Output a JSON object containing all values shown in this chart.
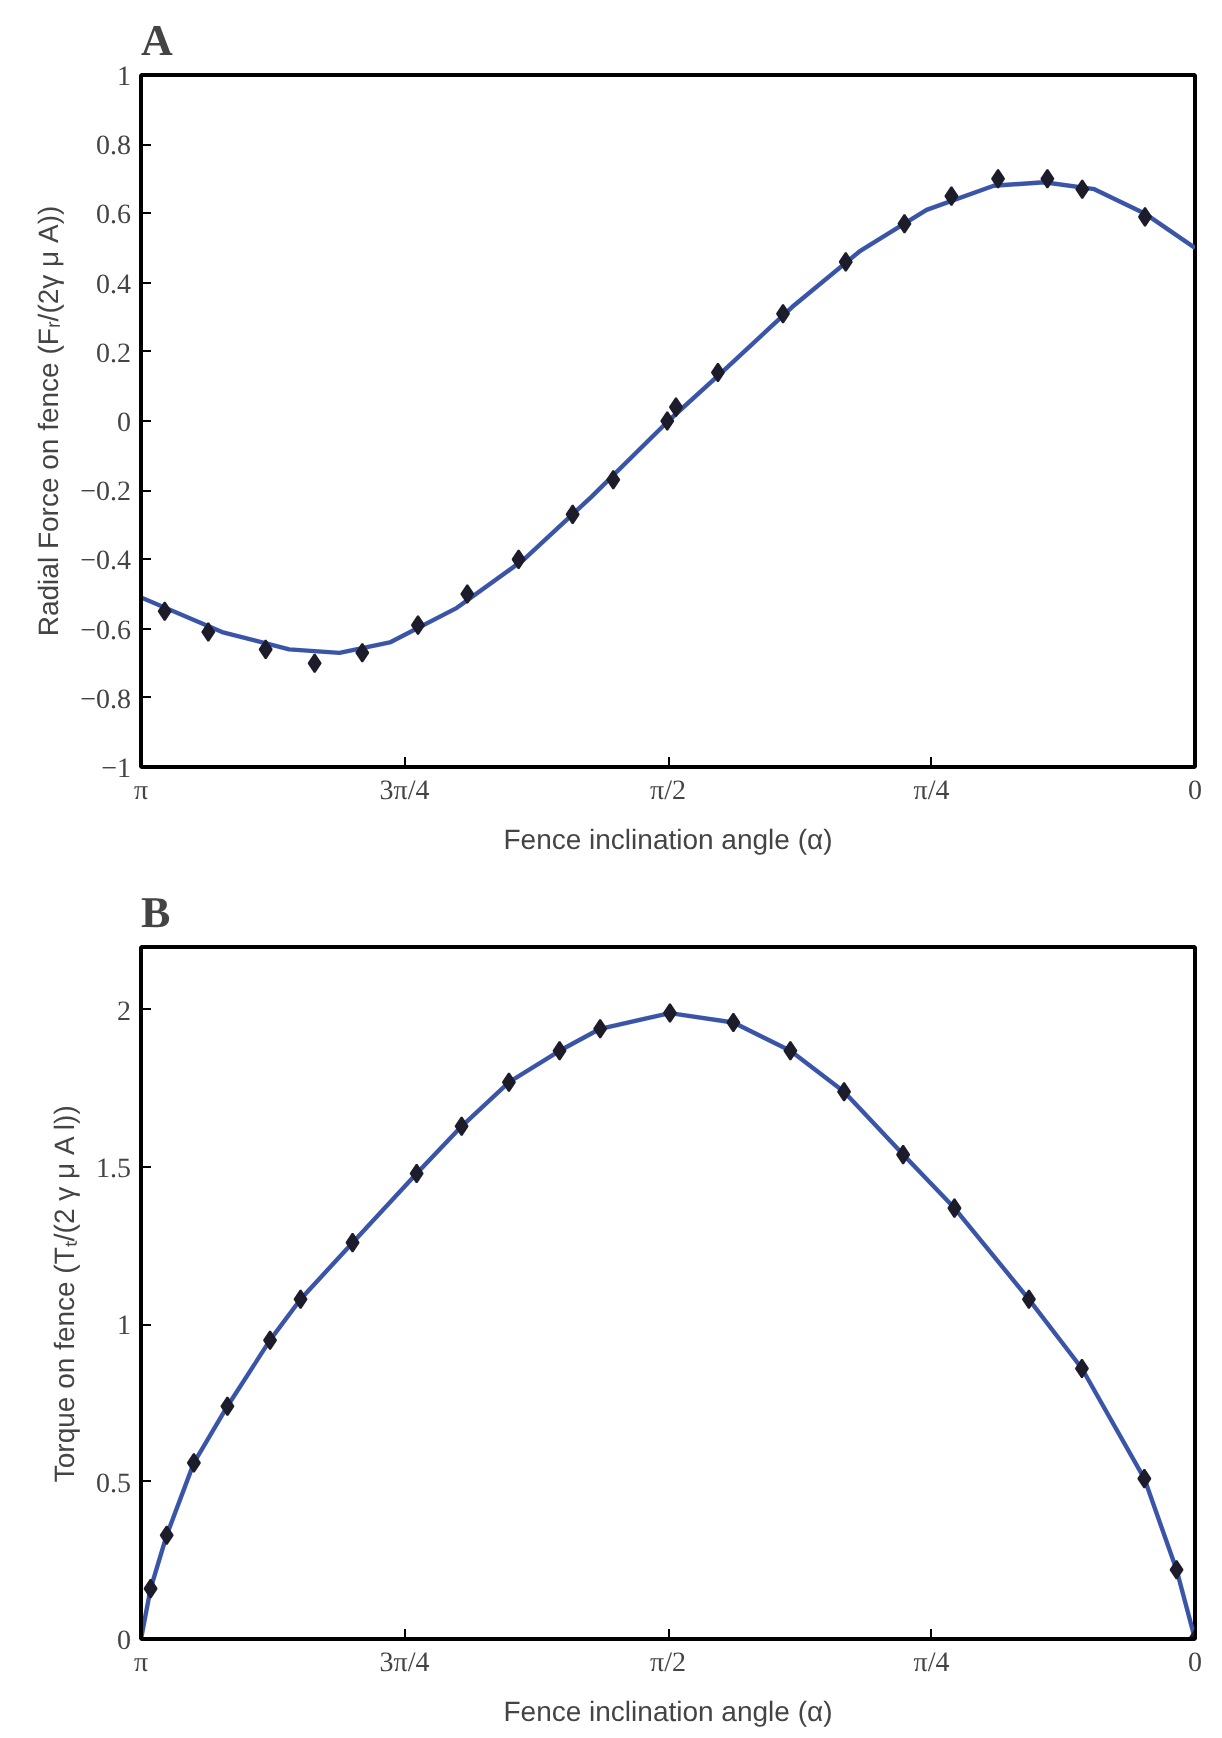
{
  "chart_data": [
    {
      "type": "line",
      "title": "A",
      "xlabel": "Fence inclination angle (α)",
      "ylabel": "Radial Force on fence (Fᵣ/(2γ μ A))",
      "xlim": [
        3.1416,
        0
      ],
      "xticks": [
        {
          "value": 3.1416,
          "label": "π"
        },
        {
          "value": 2.3562,
          "label": "3π/4"
        },
        {
          "value": 1.5708,
          "label": "π/2"
        },
        {
          "value": 0.7854,
          "label": "π/4"
        },
        0
      ],
      "ylim": [
        -1,
        1
      ],
      "yticks": [
        {
          "value": -1,
          "label": "−1"
        },
        {
          "value": -0.8,
          "label": "−0.8"
        },
        {
          "value": -0.6,
          "label": "−0.6"
        },
        {
          "value": -0.4,
          "label": "−0.4"
        },
        {
          "value": -0.2,
          "label": "−0.2"
        },
        0,
        0.2,
        0.4,
        0.6,
        0.8,
        1
      ],
      "grid": false,
      "series": [
        {
          "color": "#3a55a8",
          "marker": "none",
          "x": [
            3.1416,
            2.9,
            2.7,
            2.55,
            2.4,
            2.2,
            2.0,
            1.8,
            1.57,
            1.4,
            1.2,
            1.0,
            0.8,
            0.6,
            0.45,
            0.3,
            0.15,
            0
          ],
          "values": [
            -0.51,
            -0.61,
            -0.66,
            -0.67,
            -0.64,
            -0.54,
            -0.4,
            -0.22,
            0.0,
            0.15,
            0.33,
            0.49,
            0.61,
            0.68,
            0.69,
            0.67,
            0.6,
            0.5
          ]
        },
        {
          "type": "scatter",
          "marker": "diamond",
          "color": "#1c1c2a",
          "x": [
            3.071,
            2.941,
            2.77,
            2.624,
            2.482,
            2.316,
            2.169,
            2.016,
            1.855,
            1.734,
            1.573,
            1.547,
            1.422,
            1.228,
            1.041,
            0.866,
            0.726,
            0.587,
            0.44,
            0.336,
            0.149
          ],
          "values": [
            -0.55,
            -0.61,
            -0.66,
            -0.7,
            -0.67,
            -0.59,
            -0.5,
            -0.4,
            -0.27,
            -0.17,
            0.0,
            0.04,
            0.14,
            0.31,
            0.46,
            0.57,
            0.65,
            0.7,
            0.7,
            0.67,
            0.59
          ]
        }
      ]
    },
    {
      "type": "line",
      "title": "B",
      "xlabel": "Fence inclination angle (α)",
      "ylabel": "Torque on fence (Tₜ/(2 γ μ A l))",
      "xlim": [
        3.1416,
        0
      ],
      "xticks": [
        {
          "value": 3.1416,
          "label": "π"
        },
        {
          "value": 2.3562,
          "label": "3π/4"
        },
        {
          "value": 1.5708,
          "label": "π/2"
        },
        {
          "value": 0.7854,
          "label": "π/4"
        },
        0
      ],
      "ylim": [
        0,
        2.2
      ],
      "yticks": [
        0,
        0.5,
        1,
        1.5,
        2
      ],
      "grid": false,
      "series": [
        {
          "color": "#3a55a8",
          "marker": "none",
          "x": [
            3.1416,
            3.113,
            3.065,
            2.984,
            2.884,
            2.757,
            2.666,
            2.511,
            2.32,
            2.186,
            2.045,
            1.894,
            1.773,
            1.565,
            1.376,
            1.206,
            1.046,
            0.87,
            0.717,
            0.495,
            0.337,
            0.151,
            0.055,
            0
          ],
          "values": [
            0,
            0.16,
            0.33,
            0.56,
            0.74,
            0.95,
            1.08,
            1.26,
            1.48,
            1.63,
            1.77,
            1.87,
            1.94,
            1.99,
            1.96,
            1.87,
            1.74,
            1.54,
            1.37,
            1.08,
            0.86,
            0.51,
            0.22,
            0
          ]
        },
        {
          "type": "scatter",
          "marker": "diamond",
          "color": "#1c1c2a",
          "x": [
            3.113,
            3.065,
            2.984,
            2.884,
            2.757,
            2.666,
            2.511,
            2.32,
            2.186,
            2.045,
            1.894,
            1.773,
            1.565,
            1.376,
            1.206,
            1.046,
            0.87,
            0.717,
            0.495,
            0.337,
            0.151,
            0.055,
            0
          ],
          "values": [
            0.16,
            0.33,
            0.56,
            0.74,
            0.95,
            1.08,
            1.26,
            1.48,
            1.63,
            1.77,
            1.87,
            1.94,
            1.99,
            1.96,
            1.87,
            1.74,
            1.54,
            1.37,
            1.08,
            0.86,
            0.51,
            0.22,
            0
          ]
        }
      ]
    }
  ]
}
